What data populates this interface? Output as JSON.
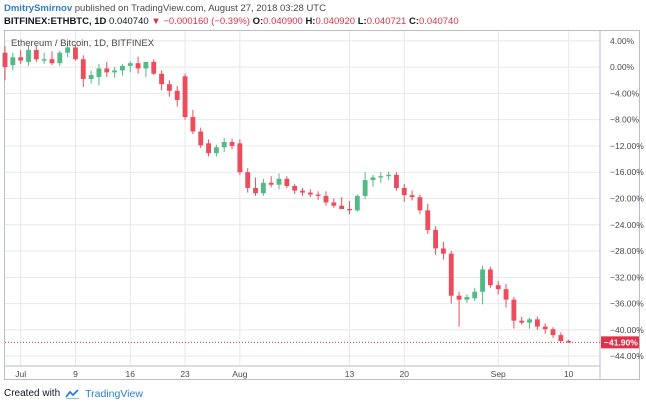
{
  "header": {
    "author": "DmitrySmirnov",
    "published": "published on TradingView.com, August 27, 2018 03:28 UTC"
  },
  "ohlc": {
    "symbol": "BITFINEX:ETHBTC, 1D",
    "last": "0.040740",
    "change": "−0.000160 (−0.39%)",
    "o_label": "O:",
    "o": "0.040900",
    "h_label": "H:",
    "h": "0.040920",
    "l_label": "L:",
    "l": "0.040721",
    "c_label": "C:",
    "c": "0.040740"
  },
  "footer": {
    "created_with": "Created with",
    "brand": "TradingView"
  },
  "colors": {
    "up": "#53b987",
    "down": "#eb4d5c",
    "last_price": "#e0314b",
    "grid": "#e6e8ec",
    "axis_text": "#4a4a4a"
  },
  "chart_data": {
    "type": "candlestick",
    "title": "Ethereum / Bitcoin, 1D, BITFINEX",
    "y_unit": "percent",
    "ylim": [
      -45.5,
      5.5
    ],
    "y_ticks": [
      4,
      0,
      -4,
      -8,
      -12,
      -16,
      -20,
      -24,
      -28,
      -32,
      -36,
      -40,
      -44
    ],
    "y_tick_labels": [
      "4.00%",
      "0.00%",
      "−4.00%",
      "−8.00%",
      "−12.00%",
      "−16.00%",
      "−20.00%",
      "−24.00%",
      "−28.00%",
      "−32.00%",
      "−36.00%",
      "−40.00%",
      "−44.00%"
    ],
    "x_ticks": [
      {
        "date": "2018-07-02",
        "label": "Jul"
      },
      {
        "date": "2018-07-09",
        "label": "9"
      },
      {
        "date": "2018-07-16",
        "label": "16"
      },
      {
        "date": "2018-07-23",
        "label": "23"
      },
      {
        "date": "2018-07-30",
        "label": "Aug"
      },
      {
        "date": "2018-08-13",
        "label": "13"
      },
      {
        "date": "2018-08-20",
        "label": "20"
      },
      {
        "date": "2018-09-01",
        "label": "Sep"
      },
      {
        "date": "2018-09-10",
        "label": "10"
      }
    ],
    "x_range": [
      "2018-06-30",
      "2018-09-14"
    ],
    "last_value": -41.9,
    "last_label": "−41.90%",
    "grid": true,
    "candles": [
      {
        "date": "2018-06-30",
        "o": 2.2,
        "h": 3.2,
        "l": -2.0,
        "c": 0.0
      },
      {
        "date": "2018-07-01",
        "o": 0.3,
        "h": 2.2,
        "l": -0.5,
        "c": 1.5
      },
      {
        "date": "2018-07-02",
        "o": 1.5,
        "h": 2.6,
        "l": 0.5,
        "c": 1.0
      },
      {
        "date": "2018-07-03",
        "o": 0.8,
        "h": 3.3,
        "l": 0.2,
        "c": 2.6
      },
      {
        "date": "2018-07-04",
        "o": 2.6,
        "h": 3.3,
        "l": 0.8,
        "c": 1.2
      },
      {
        "date": "2018-07-05",
        "o": 1.0,
        "h": 2.2,
        "l": 0.5,
        "c": 1.2
      },
      {
        "date": "2018-07-06",
        "o": 1.2,
        "h": 2.4,
        "l": 0.3,
        "c": 0.6
      },
      {
        "date": "2018-07-07",
        "o": 0.6,
        "h": 2.5,
        "l": 0.2,
        "c": 2.2
      },
      {
        "date": "2018-07-08",
        "o": 2.2,
        "h": 3.6,
        "l": 1.5,
        "c": 3.0
      },
      {
        "date": "2018-07-09",
        "o": 3.0,
        "h": 3.4,
        "l": 1.0,
        "c": 1.2
      },
      {
        "date": "2018-07-10",
        "o": 1.2,
        "h": 1.8,
        "l": -3.0,
        "c": -1.8
      },
      {
        "date": "2018-07-11",
        "o": -1.8,
        "h": -0.5,
        "l": -2.5,
        "c": -1.2
      },
      {
        "date": "2018-07-12",
        "o": -1.5,
        "h": 0.5,
        "l": -2.8,
        "c": -0.2
      },
      {
        "date": "2018-07-13",
        "o": -0.2,
        "h": 0.8,
        "l": -1.5,
        "c": -0.8
      },
      {
        "date": "2018-07-14",
        "o": -0.8,
        "h": 0.0,
        "l": -1.6,
        "c": -0.5
      },
      {
        "date": "2018-07-15",
        "o": -0.5,
        "h": 0.5,
        "l": -1.3,
        "c": 0.2
      },
      {
        "date": "2018-07-16",
        "o": 0.2,
        "h": 0.9,
        "l": -0.8,
        "c": 0.6
      },
      {
        "date": "2018-07-17",
        "o": 0.6,
        "h": 1.6,
        "l": -1.0,
        "c": -0.2
      },
      {
        "date": "2018-07-18",
        "o": -0.2,
        "h": 0.6,
        "l": -1.5,
        "c": 0.8
      },
      {
        "date": "2018-07-19",
        "o": 0.8,
        "h": 1.2,
        "l": -1.2,
        "c": -1.0
      },
      {
        "date": "2018-07-20",
        "o": -1.0,
        "h": -0.5,
        "l": -3.5,
        "c": -2.6
      },
      {
        "date": "2018-07-21",
        "o": -2.6,
        "h": -2.0,
        "l": -4.5,
        "c": -3.6
      },
      {
        "date": "2018-07-22",
        "o": -3.6,
        "h": -2.9,
        "l": -6.0,
        "c": -5.0
      },
      {
        "date": "2018-07-23",
        "o": -1.4,
        "h": -1.0,
        "l": -8.0,
        "c": -7.6
      },
      {
        "date": "2018-07-24",
        "o": -7.6,
        "h": -6.5,
        "l": -10.2,
        "c": -9.8
      },
      {
        "date": "2018-07-25",
        "o": -9.8,
        "h": -9.2,
        "l": -12.3,
        "c": -11.9
      },
      {
        "date": "2018-07-26",
        "o": -11.6,
        "h": -11.0,
        "l": -13.6,
        "c": -13.1
      },
      {
        "date": "2018-07-27",
        "o": -13.1,
        "h": -11.8,
        "l": -13.6,
        "c": -12.2
      },
      {
        "date": "2018-07-28",
        "o": -12.2,
        "h": -10.8,
        "l": -12.9,
        "c": -11.4
      },
      {
        "date": "2018-07-29",
        "o": -11.4,
        "h": -10.9,
        "l": -12.5,
        "c": -12.0
      },
      {
        "date": "2018-07-30",
        "o": -11.6,
        "h": -11.0,
        "l": -16.4,
        "c": -16.0
      },
      {
        "date": "2018-07-31",
        "o": -16.0,
        "h": -15.4,
        "l": -19.1,
        "c": -18.4
      },
      {
        "date": "2018-08-01",
        "o": -18.4,
        "h": -16.8,
        "l": -19.6,
        "c": -19.2
      },
      {
        "date": "2018-08-02",
        "o": -19.2,
        "h": -17.0,
        "l": -19.6,
        "c": -17.6
      },
      {
        "date": "2018-08-03",
        "o": -17.6,
        "h": -16.6,
        "l": -18.3,
        "c": -17.9
      },
      {
        "date": "2018-08-04",
        "o": -17.9,
        "h": -16.2,
        "l": -18.6,
        "c": -17.0
      },
      {
        "date": "2018-08-05",
        "o": -17.0,
        "h": -16.6,
        "l": -18.4,
        "c": -18.1
      },
      {
        "date": "2018-08-06",
        "o": -18.1,
        "h": -17.8,
        "l": -19.3,
        "c": -18.8
      },
      {
        "date": "2018-08-07",
        "o": -18.8,
        "h": -18.4,
        "l": -19.6,
        "c": -19.1
      },
      {
        "date": "2018-08-08",
        "o": -19.1,
        "h": -18.6,
        "l": -19.8,
        "c": -19.4
      },
      {
        "date": "2018-08-09",
        "o": -19.4,
        "h": -18.9,
        "l": -20.2,
        "c": -19.6
      },
      {
        "date": "2018-08-10",
        "o": -19.6,
        "h": -18.9,
        "l": -21.1,
        "c": -20.6
      },
      {
        "date": "2018-08-11",
        "o": -20.6,
        "h": -20.0,
        "l": -21.4,
        "c": -21.1
      },
      {
        "date": "2018-08-12",
        "o": -21.1,
        "h": -19.8,
        "l": -21.6,
        "c": -21.6
      },
      {
        "date": "2018-08-13",
        "o": -21.6,
        "h": -20.4,
        "l": -22.4,
        "c": -21.8
      },
      {
        "date": "2018-08-14",
        "o": -21.8,
        "h": -19.4,
        "l": -22.0,
        "c": -19.6
      },
      {
        "date": "2018-08-15",
        "o": -19.6,
        "h": -16.0,
        "l": -20.0,
        "c": -17.2
      },
      {
        "date": "2018-08-16",
        "o": -17.2,
        "h": -16.4,
        "l": -18.2,
        "c": -16.8
      },
      {
        "date": "2018-08-17",
        "o": -16.8,
        "h": -16.0,
        "l": -17.6,
        "c": -16.6
      },
      {
        "date": "2018-08-18",
        "o": -16.6,
        "h": -15.9,
        "l": -17.2,
        "c": -16.4
      },
      {
        "date": "2018-08-19",
        "o": -16.4,
        "h": -16.0,
        "l": -18.8,
        "c": -18.4
      },
      {
        "date": "2018-08-20",
        "o": -18.4,
        "h": -17.8,
        "l": -20.5,
        "c": -19.5
      },
      {
        "date": "2018-08-21",
        "o": -19.5,
        "h": -18.8,
        "l": -20.3,
        "c": -19.8
      },
      {
        "date": "2018-08-22",
        "o": -19.8,
        "h": -19.4,
        "l": -22.4,
        "c": -21.8
      },
      {
        "date": "2018-08-23",
        "o": -21.8,
        "h": -20.8,
        "l": -25.4,
        "c": -24.8
      },
      {
        "date": "2018-08-24",
        "o": -24.8,
        "h": -24.2,
        "l": -28.6,
        "c": -27.6
      },
      {
        "date": "2018-08-25",
        "o": -27.6,
        "h": -26.6,
        "l": -29.3,
        "c": -28.4
      },
      {
        "date": "2018-08-26",
        "o": -28.4,
        "h": -28.0,
        "l": -36.0,
        "c": -34.8
      },
      {
        "date": "2018-08-27",
        "o": -34.8,
        "h": -34.2,
        "l": -39.5,
        "c": -35.4
      },
      {
        "date": "2018-08-28",
        "o": -35.4,
        "h": -34.6,
        "l": -35.9,
        "c": -35.0
      },
      {
        "date": "2018-08-29",
        "o": -35.2,
        "h": -33.6,
        "l": -35.6,
        "c": -34.2
      },
      {
        "date": "2018-08-30",
        "o": -34.2,
        "h": -30.2,
        "l": -36.1,
        "c": -30.8
      },
      {
        "date": "2018-08-31",
        "o": -30.8,
        "h": -30.4,
        "l": -33.6,
        "c": -33.2
      },
      {
        "date": "2018-09-01",
        "o": -33.2,
        "h": -32.6,
        "l": -34.6,
        "c": -33.8
      },
      {
        "date": "2018-09-02",
        "o": -33.8,
        "h": -33.0,
        "l": -36.6,
        "c": -35.4
      },
      {
        "date": "2018-09-03",
        "o": -35.4,
        "h": -35.0,
        "l": -39.8,
        "c": -38.6
      },
      {
        "date": "2018-09-04",
        "o": -38.6,
        "h": -38.0,
        "l": -39.2,
        "c": -38.9
      },
      {
        "date": "2018-09-05",
        "o": -38.9,
        "h": -38.2,
        "l": -39.8,
        "c": -38.4
      },
      {
        "date": "2018-09-06",
        "o": -38.4,
        "h": -38.0,
        "l": -40.0,
        "c": -39.5
      },
      {
        "date": "2018-09-07",
        "o": -39.5,
        "h": -39.0,
        "l": -40.6,
        "c": -39.9
      },
      {
        "date": "2018-09-08",
        "o": -39.9,
        "h": -39.6,
        "l": -41.2,
        "c": -40.8
      },
      {
        "date": "2018-09-09",
        "o": -40.8,
        "h": -40.4,
        "l": -41.9,
        "c": -41.7
      },
      {
        "date": "2018-09-10",
        "o": -41.7,
        "h": -41.5,
        "l": -42.0,
        "c": -41.9
      }
    ]
  }
}
